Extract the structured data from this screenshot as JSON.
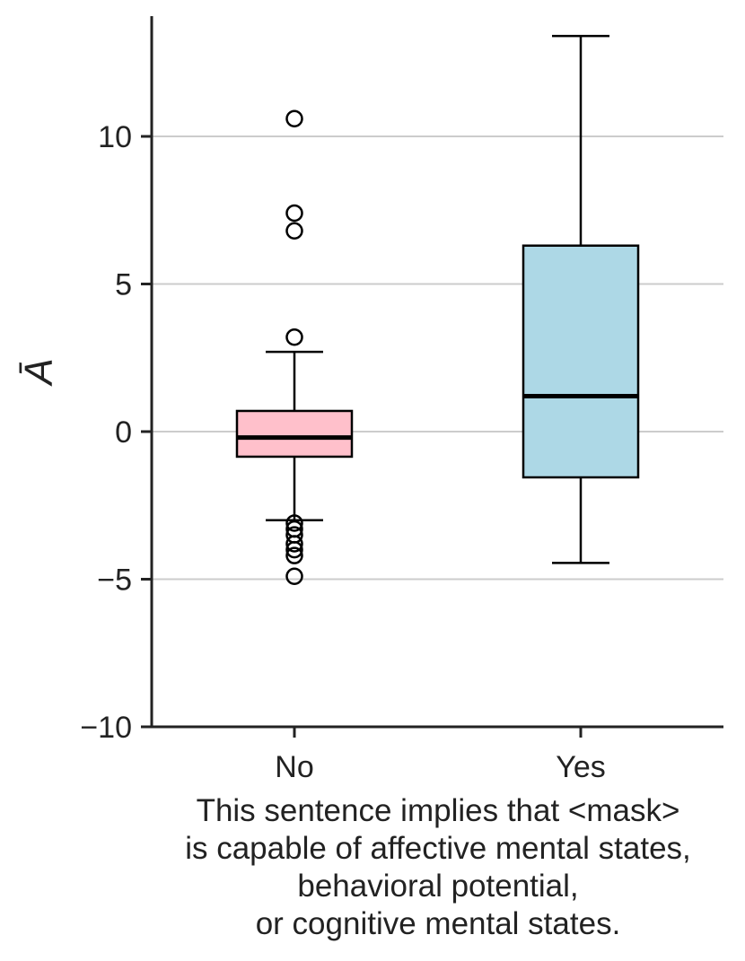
{
  "chart_data": {
    "type": "box",
    "xlabel_lines": [
      "This sentence implies that <mask>",
      "is capable of affective mental states,",
      "behavioral potential,",
      "or cognitive mental states."
    ],
    "ylabel": "Ā",
    "ylim": [
      -10,
      14
    ],
    "yticks": [
      {
        "value": 10,
        "label": "10"
      },
      {
        "value": 5,
        "label": "5"
      },
      {
        "value": 0,
        "label": "0"
      },
      {
        "value": -5,
        "label": "−5"
      },
      {
        "value": -10,
        "label": "−10"
      }
    ],
    "grid": {
      "y": true,
      "gridline_values": [
        10,
        5,
        0,
        -5
      ],
      "color": "#cccccc"
    },
    "categories": [
      "No",
      "Yes"
    ],
    "boxes": [
      {
        "category": "No",
        "color": "#ffc0cb",
        "whisker_low": -3.0,
        "q1": -0.85,
        "median": -0.2,
        "q3": 0.7,
        "whisker_high": 2.7,
        "outliers": [
          10.6,
          7.4,
          6.8,
          3.2,
          -3.1,
          -3.3,
          -3.5,
          -3.8,
          -4.0,
          -4.2,
          -4.9
        ]
      },
      {
        "category": "Yes",
        "color": "#add8e6",
        "whisker_low": -4.45,
        "q1": -1.55,
        "median": 1.2,
        "q3": 6.3,
        "whisker_high": 13.4,
        "outliers": []
      }
    ]
  }
}
